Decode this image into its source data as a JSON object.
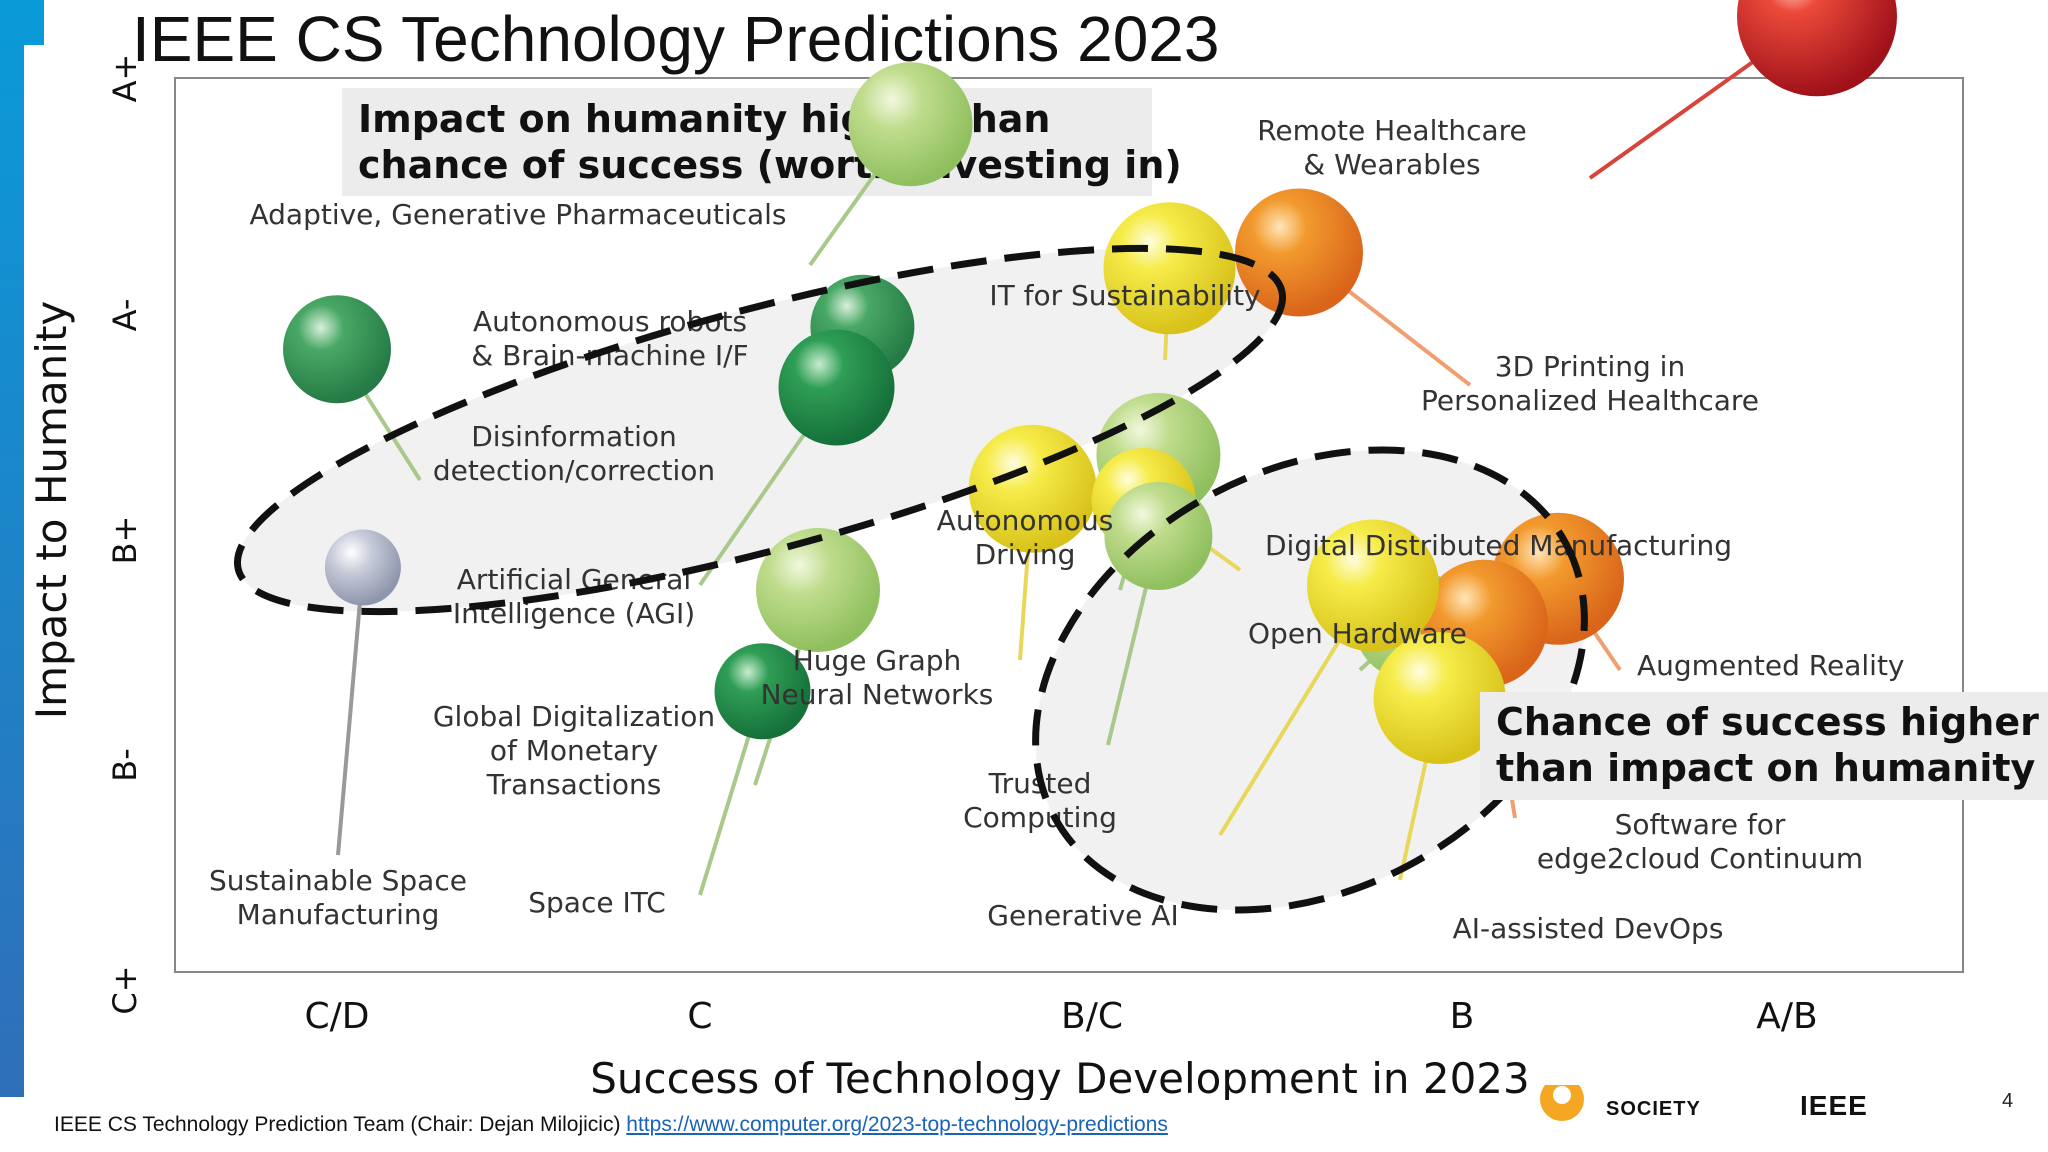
{
  "slide": {
    "title": "IEEE CS Technology Predictions 2023",
    "page_number": "4",
    "footer_text": "IEEE CS Technology Prediction Team (Chair: Dejan Milojicic) ",
    "footer_link": "https://www.computer.org/2023-top-technology-predictions",
    "logo_society": "SOCIETY",
    "logo_ieee": "IEEE"
  },
  "chart_data": {
    "type": "scatter",
    "xlabel": "Success of Technology Development in 2023",
    "ylabel": "Impact to Humanity",
    "x_ticks": [
      "C/D",
      "C",
      "B/C",
      "B",
      "A/B"
    ],
    "y_ticks": [
      "A+",
      "A-",
      "B+",
      "B-",
      "C+"
    ],
    "callouts": [
      "Impact on humanity higher than\nchance of success (worth investing in)",
      "Chance of success higher\nthan impact on humanity"
    ],
    "points": [
      {
        "label": "Remote Healthcare\n& Wearables",
        "x": 4.0,
        "y": 4.35,
        "color": "red"
      },
      {
        "label": "Adaptive, Generative Pharmaceuticals",
        "x": 1.55,
        "y": 3.87,
        "color": "lightgreen"
      },
      {
        "label": "IT for Sustainability",
        "x": 2.25,
        "y": 3.23,
        "color": "yellow"
      },
      {
        "label": "3D Printing in\nPersonalized Healthcare",
        "x": 2.6,
        "y": 3.3,
        "color": "orange"
      },
      {
        "label": "Autonomous robots\n& Brain-machine I/F",
        "x": 1.42,
        "y": 2.97,
        "color": "green"
      },
      {
        "label": "Disinformation\ndetection/correction",
        "x": 0.0,
        "y": 2.87,
        "color": "green"
      },
      {
        "label": "Artificial General\nIntelligence (AGI)",
        "x": 1.35,
        "y": 2.7,
        "color": "darkgreen"
      },
      {
        "label": "Autonomous\nDriving",
        "x": 2.22,
        "y": 2.4,
        "color": "lightgreen"
      },
      {
        "label": "Huge Graph\nNeural Networks",
        "x": 1.88,
        "y": 2.25,
        "color": "yellow"
      },
      {
        "label": "Digital Distributed Manufacturing",
        "x": 2.18,
        "y": 2.2,
        "color": "yellow"
      },
      {
        "label": "Open Hardware",
        "x": 2.9,
        "y": 1.65,
        "color": "lightgreen"
      },
      {
        "label": "Augmented Reality",
        "x": 3.3,
        "y": 1.85,
        "color": "orange"
      },
      {
        "label": "Trusted\nComputing",
        "x": 2.22,
        "y": 2.04,
        "color": "lightgreen"
      },
      {
        "label": "Software for\nedge2cloud Continuum",
        "x": 3.1,
        "y": 1.65,
        "color": "orange"
      },
      {
        "label": "Generative AI",
        "x": 2.8,
        "y": 1.82,
        "color": "yellow"
      },
      {
        "label": "AI-assisted DevOps",
        "x": 2.98,
        "y": 1.32,
        "color": "yellow"
      },
      {
        "label": "Global Digitalization\nof Monetary\nTransactions",
        "x": 1.3,
        "y": 1.8,
        "color": "lightgreen"
      },
      {
        "label": "Space ITC",
        "x": 1.15,
        "y": 1.35,
        "color": "darkgreen"
      },
      {
        "label": "Sustainable Space\nManufacturing",
        "x": 0.07,
        "y": 1.9,
        "color": "gray"
      }
    ]
  }
}
